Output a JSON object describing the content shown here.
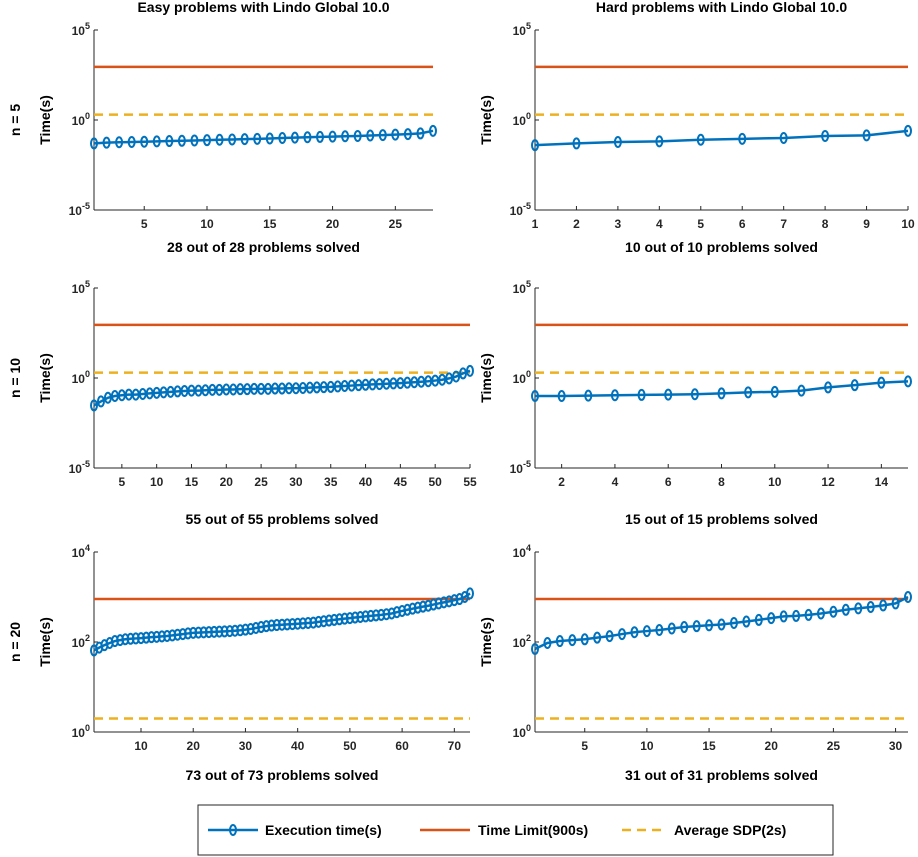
{
  "colors": {
    "execution": "#0072BD",
    "limit": "#D95319",
    "sdp": "#EDB120",
    "axis": "#262626"
  },
  "legend": {
    "execution_label": "Execution time(s)",
    "limit_label": "Time Limit(900s)",
    "sdp_label": "Average SDP(2s)"
  },
  "row_labels": [
    "n = 5",
    "n = 10",
    "n = 20"
  ],
  "chart_data": [
    {
      "type": "line",
      "scale_y": "log",
      "title": "Easy problems with Lindo Global 10.0",
      "xlabel": "28 out of 28 problems solved",
      "ylabel": "Time(s)",
      "xlim": [
        1,
        28
      ],
      "ylim_exp": [
        -5,
        5
      ],
      "xticks": [
        5,
        10,
        15,
        20,
        25
      ],
      "yticks": [
        {
          "base": "10",
          "exp": "-5",
          "v": -5
        },
        {
          "base": "10",
          "exp": "0",
          "v": 0
        },
        {
          "base": "10",
          "exp": "5",
          "v": 5
        }
      ],
      "limit": 900,
      "sdp": 2,
      "series": [
        {
          "name": "Execution time(s)",
          "x_start": 1,
          "values": [
            0.05,
            0.055,
            0.058,
            0.06,
            0.062,
            0.065,
            0.068,
            0.07,
            0.073,
            0.076,
            0.08,
            0.083,
            0.087,
            0.09,
            0.094,
            0.1,
            0.105,
            0.11,
            0.115,
            0.12,
            0.125,
            0.13,
            0.138,
            0.145,
            0.155,
            0.165,
            0.18,
            0.25
          ]
        }
      ]
    },
    {
      "type": "line",
      "scale_y": "log",
      "title": "Hard problems with Lindo Global 10.0",
      "xlabel": "10 out of 10 problems solved",
      "ylabel": "Time(s)",
      "xlim": [
        1,
        10
      ],
      "ylim_exp": [
        -5,
        5
      ],
      "xticks": [
        1,
        2,
        3,
        4,
        5,
        6,
        7,
        8,
        9,
        10
      ],
      "yticks": [
        {
          "base": "10",
          "exp": "-5",
          "v": -5
        },
        {
          "base": "10",
          "exp": "0",
          "v": 0
        },
        {
          "base": "10",
          "exp": "5",
          "v": 5
        }
      ],
      "limit": 900,
      "sdp": 2,
      "series": [
        {
          "name": "Execution time(s)",
          "x_start": 1,
          "values": [
            0.04,
            0.05,
            0.06,
            0.065,
            0.08,
            0.09,
            0.1,
            0.13,
            0.14,
            0.25
          ]
        }
      ]
    },
    {
      "type": "line",
      "scale_y": "log",
      "title": "",
      "xlabel": "55 out of 55 problems solved",
      "ylabel": "Time(s)",
      "xlim": [
        1,
        55
      ],
      "ylim_exp": [
        -5,
        5
      ],
      "xticks": [
        5,
        10,
        15,
        20,
        25,
        30,
        35,
        40,
        45,
        50,
        55
      ],
      "yticks": [
        {
          "base": "10",
          "exp": "-5",
          "v": -5
        },
        {
          "base": "10",
          "exp": "0",
          "v": 0
        },
        {
          "base": "10",
          "exp": "5",
          "v": 5
        }
      ],
      "limit": 900,
      "sdp": 2,
      "series": [
        {
          "name": "Execution time(s)",
          "x_start": 1,
          "values": [
            0.03,
            0.05,
            0.08,
            0.1,
            0.11,
            0.12,
            0.12,
            0.13,
            0.14,
            0.15,
            0.16,
            0.17,
            0.18,
            0.19,
            0.2,
            0.2,
            0.21,
            0.22,
            0.22,
            0.23,
            0.23,
            0.24,
            0.24,
            0.25,
            0.25,
            0.25,
            0.26,
            0.26,
            0.27,
            0.27,
            0.28,
            0.29,
            0.3,
            0.31,
            0.32,
            0.34,
            0.36,
            0.38,
            0.4,
            0.42,
            0.44,
            0.46,
            0.48,
            0.5,
            0.52,
            0.55,
            0.58,
            0.62,
            0.66,
            0.72,
            0.8,
            0.95,
            1.2,
            1.8,
            2.5
          ]
        }
      ]
    },
    {
      "type": "line",
      "scale_y": "log",
      "title": "",
      "xlabel": "15 out of 15 problems solved",
      "ylabel": "Time(s)",
      "xlim": [
        1,
        15
      ],
      "ylim_exp": [
        -5,
        5
      ],
      "xticks": [
        2,
        4,
        6,
        8,
        10,
        12,
        14
      ],
      "yticks": [
        {
          "base": "10",
          "exp": "-5",
          "v": -5
        },
        {
          "base": "10",
          "exp": "0",
          "v": 0
        },
        {
          "base": "10",
          "exp": "5",
          "v": 5
        }
      ],
      "limit": 900,
      "sdp": 2,
      "series": [
        {
          "name": "Execution time(s)",
          "x_start": 1,
          "values": [
            0.1,
            0.1,
            0.105,
            0.11,
            0.115,
            0.12,
            0.125,
            0.14,
            0.16,
            0.17,
            0.2,
            0.3,
            0.4,
            0.55,
            0.65
          ]
        }
      ]
    },
    {
      "type": "line",
      "scale_y": "log",
      "title": "",
      "xlabel": "73 out of 73 problems solved",
      "ylabel": "Time(s)",
      "xlim": [
        1,
        73
      ],
      "ylim_exp": [
        0,
        4
      ],
      "xticks": [
        10,
        20,
        30,
        40,
        50,
        60,
        70
      ],
      "yticks": [
        {
          "base": "10",
          "exp": "0",
          "v": 0
        },
        {
          "base": "10",
          "exp": "2",
          "v": 2
        },
        {
          "base": "10",
          "exp": "4",
          "v": 4
        }
      ],
      "limit": 900,
      "sdp": 2,
      "series": [
        {
          "name": "Execution time(s)",
          "x_start": 1,
          "values": [
            65,
            75,
            85,
            95,
            105,
            110,
            115,
            118,
            120,
            122,
            125,
            128,
            130,
            133,
            136,
            140,
            145,
            150,
            155,
            160,
            162,
            164,
            166,
            168,
            170,
            172,
            175,
            178,
            182,
            188,
            195,
            205,
            215,
            225,
            232,
            238,
            242,
            246,
            250,
            255,
            260,
            265,
            270,
            280,
            290,
            300,
            310,
            320,
            330,
            340,
            350,
            360,
            370,
            380,
            390,
            400,
            415,
            430,
            460,
            490,
            520,
            550,
            580,
            610,
            640,
            680,
            720,
            760,
            800,
            850,
            900,
            1000,
            1200
          ]
        }
      ]
    },
    {
      "type": "line",
      "scale_y": "log",
      "title": "",
      "xlabel": "31 out of 31 problems solved",
      "ylabel": "Time(s)",
      "xlim": [
        1,
        31
      ],
      "ylim_exp": [
        0,
        4
      ],
      "xticks": [
        5,
        10,
        15,
        20,
        25,
        30
      ],
      "yticks": [
        {
          "base": "10",
          "exp": "0",
          "v": 0
        },
        {
          "base": "10",
          "exp": "2",
          "v": 2
        },
        {
          "base": "10",
          "exp": "4",
          "v": 4
        }
      ],
      "limit": 900,
      "sdp": 2,
      "series": [
        {
          "name": "Execution time(s)",
          "x_start": 1,
          "values": [
            70,
            95,
            105,
            110,
            115,
            125,
            135,
            150,
            165,
            175,
            185,
            200,
            215,
            225,
            235,
            245,
            265,
            285,
            310,
            340,
            370,
            380,
            400,
            430,
            470,
            520,
            560,
            600,
            650,
            720,
            1000
          ]
        }
      ]
    }
  ]
}
